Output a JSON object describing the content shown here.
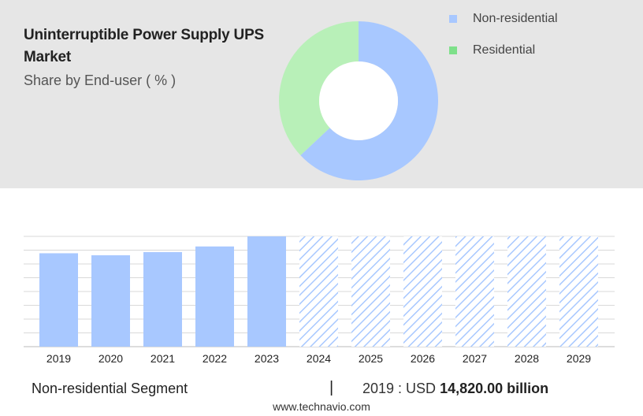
{
  "header": {
    "title": "Uninterruptible Power Supply UPS Market",
    "subtitle": "Share by End-user ( % )"
  },
  "legend": {
    "items": [
      {
        "label": "Non-residential",
        "color": "#a8c8ff"
      },
      {
        "label": "Residential",
        "color": "#7ee08a"
      }
    ]
  },
  "footer": {
    "segment": "Non-residential Segment",
    "divider": "|",
    "year_prefix": "2019 : USD",
    "value": "14,820.00 billion",
    "site": "www.technavio.com"
  },
  "chart_data": [
    {
      "type": "pie",
      "subtype": "donut",
      "title": "Share by End-user ( % )",
      "labels": [
        "Non-residential",
        "Residential"
      ],
      "values": [
        63,
        37
      ],
      "colors": [
        "#a8c8ff",
        "#b8f0b8"
      ]
    },
    {
      "type": "bar",
      "categories": [
        "2019",
        "2020",
        "2021",
        "2022",
        "2023",
        "2024",
        "2025",
        "2026",
        "2027",
        "2028",
        "2029"
      ],
      "values": [
        14820,
        14500,
        15000,
        15900,
        17500,
        null,
        null,
        null,
        null,
        null,
        null
      ],
      "forecast_categories": [
        "2024",
        "2025",
        "2026",
        "2027",
        "2028",
        "2029"
      ],
      "ylim": [
        0,
        17500
      ],
      "grid": true,
      "color": "#a8c8ff"
    }
  ]
}
